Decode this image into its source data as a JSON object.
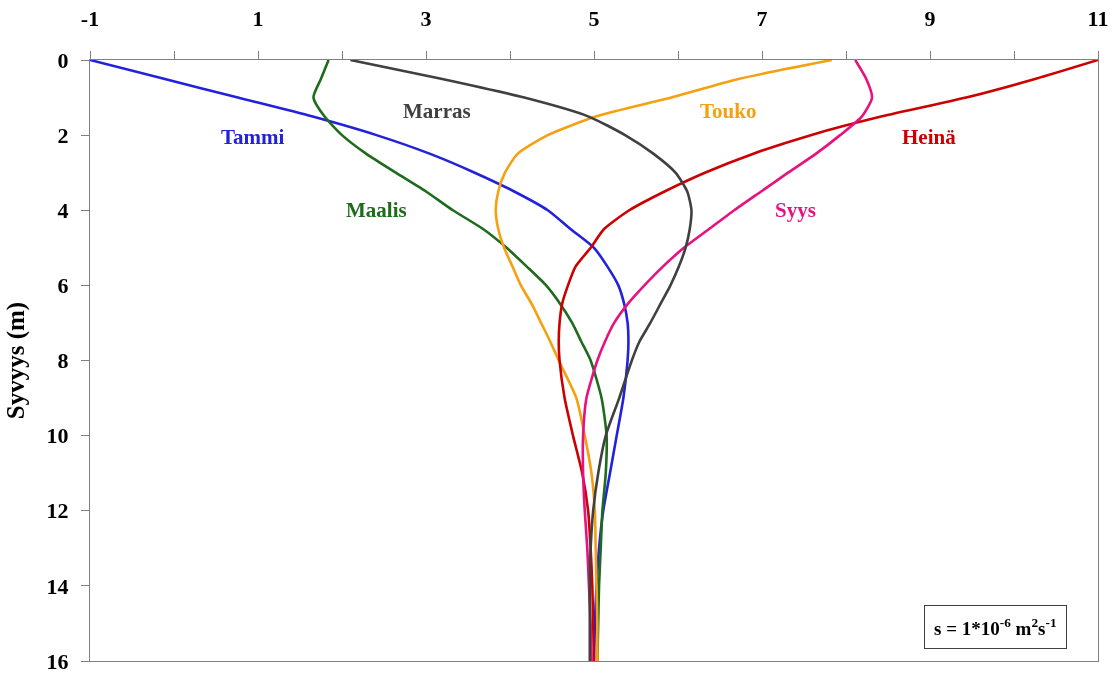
{
  "chart_data": {
    "type": "line",
    "ylabel": "Syvyys (m)",
    "xlim": [
      -1,
      11
    ],
    "xticks": [
      -1,
      {
        "value": 0,
        "label": null
      },
      1,
      {
        "value": 2,
        "label": null
      },
      3,
      {
        "value": 4,
        "label": null
      },
      5,
      {
        "value": 6,
        "label": null
      },
      7,
      {
        "value": 8,
        "label": null
      },
      9,
      {
        "value": 10,
        "label": null
      },
      11
    ],
    "ylim": [
      16,
      0
    ],
    "yticks": [
      0,
      2,
      4,
      6,
      8,
      10,
      12,
      14,
      16
    ],
    "grid": false,
    "legend": false,
    "line_style": "solid",
    "annotations": [
      "s = 1*10$^{-6}$ m$^{2}$s$^{-1}$"
    ],
    "series": [
      {
        "name": "Tammi",
        "color": "#2222dd",
        "x": [
          -1,
          -0.12,
          0.76,
          1.64,
          2.41,
          3.05,
          3.58,
          4.05,
          4.45,
          4.72,
          5.0,
          5.16,
          5.29,
          5.36,
          5.4,
          5.41,
          5.4,
          5.35,
          5.27,
          5.19,
          5.11,
          5.06,
          5.03,
          5.01,
          5.0
        ],
        "values": [
          0,
          0.5,
          1,
          1.5,
          2,
          2.5,
          3,
          3.5,
          4,
          4.5,
          5,
          5.5,
          6,
          6.5,
          7,
          7.5,
          8,
          9,
          10,
          11,
          12,
          13,
          14,
          15,
          16
        ]
      },
      {
        "name": "Maalis",
        "color": "#1e6b1e",
        "x": [
          1.84,
          1.75,
          1.66,
          1.79,
          2.0,
          2.29,
          2.64,
          3.0,
          3.32,
          3.68,
          3.96,
          4.2,
          4.43,
          4.6,
          4.74,
          4.85,
          4.96,
          5.09,
          5.15,
          5.14,
          5.1,
          5.08,
          5.06,
          5.05,
          5.04
        ],
        "values": [
          0,
          0.5,
          1,
          1.5,
          2,
          2.5,
          3,
          3.5,
          4,
          4.5,
          5,
          5.5,
          6,
          6.5,
          7,
          7.5,
          8,
          9,
          10,
          11,
          12,
          13,
          14,
          15,
          16
        ]
      },
      {
        "name": "Touko",
        "color": "#f5a010",
        "x": [
          7.83,
          6.73,
          5.92,
          5.03,
          4.45,
          4.09,
          3.94,
          3.86,
          3.83,
          3.86,
          3.93,
          4.03,
          4.13,
          4.26,
          4.37,
          4.48,
          4.58,
          4.79,
          4.89,
          4.97,
          5.01,
          5.02,
          5.03,
          5.04,
          5.04
        ],
        "values": [
          0,
          0.5,
          1,
          1.5,
          2,
          2.5,
          3,
          3.5,
          4,
          4.5,
          5,
          5.5,
          6,
          6.5,
          7,
          7.5,
          8,
          9,
          10,
          11,
          12,
          13,
          14,
          15,
          16
        ]
      },
      {
        "name": "Heinä",
        "color": "#cc0000",
        "x": [
          11,
          10.26,
          9.43,
          8.43,
          7.58,
          6.89,
          6.32,
          5.84,
          5.42,
          5.12,
          4.96,
          4.78,
          4.69,
          4.62,
          4.59,
          4.58,
          4.59,
          4.65,
          4.75,
          4.86,
          4.93,
          4.96,
          4.98,
          4.99,
          5.0
        ],
        "values": [
          0,
          0.5,
          1,
          1.5,
          2,
          2.5,
          3,
          3.5,
          4,
          4.5,
          5,
          5.5,
          6,
          6.5,
          7,
          7.5,
          8,
          9,
          10,
          11,
          12,
          13,
          14,
          15,
          16
        ]
      },
      {
        "name": "Syys",
        "color": "#e6127f",
        "x": [
          8.11,
          8.24,
          8.31,
          8.19,
          7.93,
          7.64,
          7.31,
          6.99,
          6.67,
          6.37,
          6.07,
          5.82,
          5.6,
          5.4,
          5.24,
          5.13,
          5.04,
          4.91,
          4.87,
          4.87,
          4.89,
          4.92,
          4.94,
          4.96,
          4.97
        ],
        "values": [
          0,
          0.5,
          1,
          1.5,
          2,
          2.5,
          3,
          3.5,
          4,
          4.5,
          5,
          5.5,
          6,
          6.5,
          7,
          7.5,
          8,
          9,
          10,
          11,
          12,
          13,
          14,
          15,
          16
        ]
      },
      {
        "name": "Marras",
        "color": "#404040",
        "x": [
          2.1,
          3.18,
          4.17,
          4.93,
          5.37,
          5.71,
          5.97,
          6.11,
          6.16,
          6.14,
          6.09,
          6.01,
          5.91,
          5.79,
          5.67,
          5.54,
          5.45,
          5.3,
          5.14,
          5.05,
          4.99,
          4.96,
          4.95,
          4.95,
          4.95
        ],
        "values": [
          0,
          0.5,
          1,
          1.5,
          2,
          2.5,
          3,
          3.5,
          4,
          4.5,
          5,
          5.5,
          6,
          6.5,
          7,
          7.5,
          8,
          9,
          10,
          11,
          12,
          13,
          14,
          15,
          16
        ]
      }
    ]
  }
}
